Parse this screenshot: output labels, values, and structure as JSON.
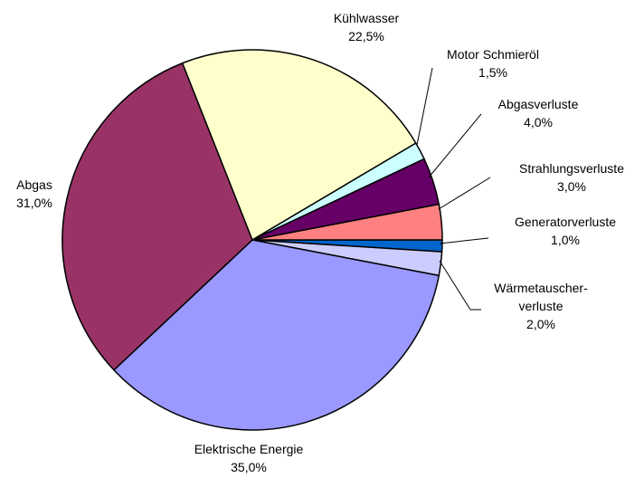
{
  "chart_data": {
    "type": "pie",
    "categories": [
      "Generatorverluste",
      "Wärmetauscher-\nverluste",
      "Elektrische Energie",
      "Abgas",
      "Kühlwasser",
      "Motor Schmieröl",
      "Abgasverluste",
      "Strahlungsverluste"
    ],
    "values": [
      1.0,
      2.0,
      35.0,
      31.0,
      22.5,
      1.5,
      4.0,
      3.0
    ],
    "value_labels": [
      "1,0%",
      "2,0%",
      "35,0%",
      "31,0%",
      "22,5%",
      "1,5%",
      "4,0%",
      "3,0%"
    ],
    "colors": [
      "#0066cc",
      "#ccccff",
      "#9999ff",
      "#993366",
      "#ffffcc",
      "#ccffff",
      "#660066",
      "#ff8080"
    ]
  }
}
